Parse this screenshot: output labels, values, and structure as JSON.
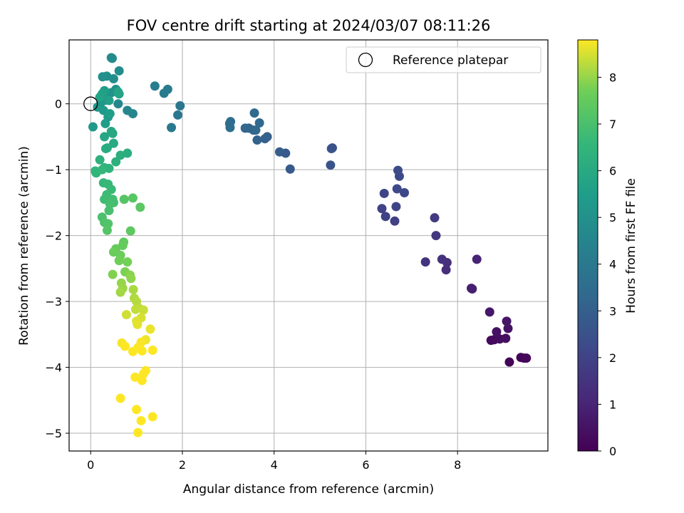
{
  "chart_data": {
    "type": "scatter",
    "title": "FOV centre drift starting at 2024/03/07 08:11:26",
    "xlabel": "Angular distance from reference (arcmin)",
    "ylabel": "Rotation from reference (arcmin)",
    "colorbar_label": "Hours from first FF file",
    "colormap": "viridis",
    "xlim": [
      -0.47,
      9.97
    ],
    "ylim": [
      -5.27,
      0.97
    ],
    "clim": [
      0,
      8.8
    ],
    "x_ticks": [
      0,
      2,
      4,
      6,
      8
    ],
    "y_ticks": [
      0,
      -1,
      -2,
      -3,
      -4,
      -5
    ],
    "colorbar_ticks": [
      0,
      1,
      2,
      3,
      4,
      5,
      6,
      7,
      8
    ],
    "grid": true,
    "legend": {
      "position": "top-right",
      "entries": [
        "Reference platepar"
      ]
    },
    "reference_point": {
      "x": 0,
      "y": 0
    },
    "points": [
      {
        "x": 9.13,
        "y": -3.92,
        "c": 0.05
      },
      {
        "x": 9.38,
        "y": -3.85,
        "c": 0.1
      },
      {
        "x": 9.45,
        "y": -3.86,
        "c": 0.15
      },
      {
        "x": 9.5,
        "y": -3.86,
        "c": 0.2
      },
      {
        "x": 8.73,
        "y": -3.59,
        "c": 0.25
      },
      {
        "x": 8.8,
        "y": -3.58,
        "c": 0.3
      },
      {
        "x": 8.92,
        "y": -3.57,
        "c": 0.35
      },
      {
        "x": 9.05,
        "y": -3.56,
        "c": 0.4
      },
      {
        "x": 8.85,
        "y": -3.46,
        "c": 0.45
      },
      {
        "x": 9.1,
        "y": -3.41,
        "c": 0.5
      },
      {
        "x": 9.07,
        "y": -3.3,
        "c": 0.55
      },
      {
        "x": 8.7,
        "y": -3.16,
        "c": 0.6
      },
      {
        "x": 8.3,
        "y": -2.8,
        "c": 0.8
      },
      {
        "x": 8.32,
        "y": -2.81,
        "c": 0.85
      },
      {
        "x": 8.42,
        "y": -2.36,
        "c": 1.0
      },
      {
        "x": 7.75,
        "y": -2.52,
        "c": 1.3
      },
      {
        "x": 7.77,
        "y": -2.41,
        "c": 1.35
      },
      {
        "x": 7.66,
        "y": -2.36,
        "c": 1.4
      },
      {
        "x": 7.3,
        "y": -2.4,
        "c": 1.5
      },
      {
        "x": 7.53,
        "y": -2.0,
        "c": 1.6
      },
      {
        "x": 7.5,
        "y": -1.73,
        "c": 1.7
      },
      {
        "x": 6.63,
        "y": -1.78,
        "c": 1.9
      },
      {
        "x": 6.43,
        "y": -1.71,
        "c": 1.95
      },
      {
        "x": 6.35,
        "y": -1.59,
        "c": 2.0
      },
      {
        "x": 6.66,
        "y": -1.56,
        "c": 2.05
      },
      {
        "x": 6.4,
        "y": -1.36,
        "c": 2.1
      },
      {
        "x": 6.84,
        "y": -1.35,
        "c": 2.15
      },
      {
        "x": 6.68,
        "y": -1.29,
        "c": 2.2
      },
      {
        "x": 6.73,
        "y": -1.1,
        "c": 2.25
      },
      {
        "x": 6.7,
        "y": -1.01,
        "c": 2.3
      },
      {
        "x": 5.27,
        "y": -0.67,
        "c": 2.5
      },
      {
        "x": 5.25,
        "y": -0.68,
        "c": 2.55
      },
      {
        "x": 5.23,
        "y": -0.93,
        "c": 2.6
      },
      {
        "x": 4.35,
        "y": -0.99,
        "c": 2.8
      },
      {
        "x": 4.25,
        "y": -0.75,
        "c": 2.85
      },
      {
        "x": 4.12,
        "y": -0.73,
        "c": 2.9
      },
      {
        "x": 3.85,
        "y": -0.5,
        "c": 3.0
      },
      {
        "x": 3.8,
        "y": -0.53,
        "c": 3.05
      },
      {
        "x": 3.63,
        "y": -0.55,
        "c": 3.1
      },
      {
        "x": 3.55,
        "y": -0.4,
        "c": 3.15
      },
      {
        "x": 3.45,
        "y": -0.37,
        "c": 3.2
      },
      {
        "x": 3.37,
        "y": -0.37,
        "c": 3.25
      },
      {
        "x": 3.6,
        "y": -0.4,
        "c": 3.3
      },
      {
        "x": 3.68,
        "y": -0.29,
        "c": 3.35
      },
      {
        "x": 3.57,
        "y": -0.14,
        "c": 3.4
      },
      {
        "x": 3.05,
        "y": -0.27,
        "c": 3.5
      },
      {
        "x": 3.03,
        "y": -0.3,
        "c": 3.55
      },
      {
        "x": 3.04,
        "y": -0.36,
        "c": 3.6
      },
      {
        "x": 1.95,
        "y": -0.03,
        "c": 3.9
      },
      {
        "x": 1.9,
        "y": -0.17,
        "c": 3.95
      },
      {
        "x": 1.76,
        "y": -0.36,
        "c": 4.0
      },
      {
        "x": 1.68,
        "y": 0.22,
        "c": 4.1
      },
      {
        "x": 1.6,
        "y": 0.16,
        "c": 4.15
      },
      {
        "x": 1.4,
        "y": 0.27,
        "c": 4.2
      },
      {
        "x": 0.92,
        "y": -0.15,
        "c": 4.5
      },
      {
        "x": 0.8,
        "y": -0.1,
        "c": 4.55
      },
      {
        "x": 0.6,
        "y": 0.0,
        "c": 4.6
      },
      {
        "x": 0.45,
        "y": 0.7,
        "c": 4.7
      },
      {
        "x": 0.47,
        "y": 0.69,
        "c": 4.75
      },
      {
        "x": 0.62,
        "y": 0.5,
        "c": 4.8
      },
      {
        "x": 0.5,
        "y": 0.38,
        "c": 4.85
      },
      {
        "x": 0.35,
        "y": 0.42,
        "c": 4.9
      },
      {
        "x": 0.26,
        "y": 0.41,
        "c": 4.95
      },
      {
        "x": 0.55,
        "y": 0.22,
        "c": 5.0
      },
      {
        "x": 0.45,
        "y": 0.17,
        "c": 5.05
      },
      {
        "x": 0.35,
        "y": 0.1,
        "c": 5.1
      },
      {
        "x": 0.3,
        "y": 0.05,
        "c": 5.15
      },
      {
        "x": 0.2,
        "y": -0.02,
        "c": 5.2
      },
      {
        "x": 0.15,
        "y": -0.05,
        "c": 5.25
      },
      {
        "x": 0.05,
        "y": -0.35,
        "c": 5.3
      },
      {
        "x": 0.28,
        "y": -0.1,
        "c": 5.35
      },
      {
        "x": 0.38,
        "y": -0.2,
        "c": 5.4
      },
      {
        "x": 0.32,
        "y": -0.3,
        "c": 5.45
      },
      {
        "x": 0.42,
        "y": -0.15,
        "c": 5.5
      },
      {
        "x": 0.3,
        "y": 0.2,
        "c": 5.55
      },
      {
        "x": 0.25,
        "y": 0.15,
        "c": 5.6
      },
      {
        "x": 0.4,
        "y": 0.05,
        "c": 5.65
      },
      {
        "x": 0.2,
        "y": 0.1,
        "c": 5.7
      },
      {
        "x": 0.62,
        "y": 0.15,
        "c": 5.75
      },
      {
        "x": 0.6,
        "y": 0.18,
        "c": 5.8
      },
      {
        "x": 0.3,
        "y": -0.5,
        "c": 5.85
      },
      {
        "x": 0.45,
        "y": -0.42,
        "c": 5.9
      },
      {
        "x": 0.48,
        "y": -0.45,
        "c": 5.95
      },
      {
        "x": 0.5,
        "y": -0.6,
        "c": 6.0
      },
      {
        "x": 0.36,
        "y": -0.67,
        "c": 6.05
      },
      {
        "x": 0.33,
        "y": -0.68,
        "c": 6.1
      },
      {
        "x": 0.8,
        "y": -0.75,
        "c": 6.15
      },
      {
        "x": 0.65,
        "y": -0.78,
        "c": 6.2
      },
      {
        "x": 0.55,
        "y": -0.88,
        "c": 6.25
      },
      {
        "x": 0.2,
        "y": -0.85,
        "c": 6.3
      },
      {
        "x": 0.3,
        "y": -0.97,
        "c": 6.35
      },
      {
        "x": 0.4,
        "y": -0.98,
        "c": 6.4
      },
      {
        "x": 0.12,
        "y": -1.05,
        "c": 6.45
      },
      {
        "x": 0.1,
        "y": -1.02,
        "c": 6.5
      },
      {
        "x": 0.25,
        "y": -1.0,
        "c": 6.55
      },
      {
        "x": 0.28,
        "y": -1.2,
        "c": 6.6
      },
      {
        "x": 0.38,
        "y": -1.22,
        "c": 6.65
      },
      {
        "x": 0.45,
        "y": -1.3,
        "c": 6.7
      },
      {
        "x": 0.35,
        "y": -1.38,
        "c": 6.75
      },
      {
        "x": 0.3,
        "y": -1.45,
        "c": 6.8
      },
      {
        "x": 0.48,
        "y": -1.45,
        "c": 6.85
      },
      {
        "x": 0.5,
        "y": -1.5,
        "c": 6.9
      },
      {
        "x": 0.42,
        "y": -1.52,
        "c": 6.95
      },
      {
        "x": 0.4,
        "y": -1.62,
        "c": 7.0
      },
      {
        "x": 0.25,
        "y": -1.72,
        "c": 7.05
      },
      {
        "x": 0.3,
        "y": -1.8,
        "c": 7.1
      },
      {
        "x": 0.38,
        "y": -1.82,
        "c": 7.15
      },
      {
        "x": 0.36,
        "y": -1.92,
        "c": 7.2
      },
      {
        "x": 0.73,
        "y": -1.45,
        "c": 7.25
      },
      {
        "x": 0.92,
        "y": -1.43,
        "c": 7.3
      },
      {
        "x": 1.08,
        "y": -1.57,
        "c": 7.35
      },
      {
        "x": 0.87,
        "y": -1.93,
        "c": 7.4
      },
      {
        "x": 0.72,
        "y": -2.1,
        "c": 7.45
      },
      {
        "x": 0.7,
        "y": -2.15,
        "c": 7.5
      },
      {
        "x": 0.55,
        "y": -2.2,
        "c": 7.55
      },
      {
        "x": 0.5,
        "y": -2.25,
        "c": 7.6
      },
      {
        "x": 0.65,
        "y": -2.3,
        "c": 7.65
      },
      {
        "x": 0.62,
        "y": -2.38,
        "c": 7.7
      },
      {
        "x": 0.8,
        "y": -2.4,
        "c": 7.75
      },
      {
        "x": 0.75,
        "y": -2.55,
        "c": 7.8
      },
      {
        "x": 0.48,
        "y": -2.59,
        "c": 7.85
      },
      {
        "x": 0.86,
        "y": -2.6,
        "c": 7.9
      },
      {
        "x": 0.88,
        "y": -2.65,
        "c": 7.95
      },
      {
        "x": 0.67,
        "y": -2.72,
        "c": 8.0
      },
      {
        "x": 0.7,
        "y": -2.8,
        "c": 8.05
      },
      {
        "x": 0.65,
        "y": -2.86,
        "c": 8.1
      },
      {
        "x": 0.93,
        "y": -2.82,
        "c": 8.15
      },
      {
        "x": 0.95,
        "y": -2.95,
        "c": 8.2
      },
      {
        "x": 1.0,
        "y": -3.0,
        "c": 8.25
      },
      {
        "x": 1.05,
        "y": -3.1,
        "c": 8.3
      },
      {
        "x": 0.98,
        "y": -3.12,
        "c": 8.35
      },
      {
        "x": 1.15,
        "y": -3.13,
        "c": 8.4
      },
      {
        "x": 0.78,
        "y": -3.2,
        "c": 8.45
      },
      {
        "x": 1.1,
        "y": -3.25,
        "c": 8.5
      },
      {
        "x": 1.0,
        "y": -3.3,
        "c": 8.55
      },
      {
        "x": 1.02,
        "y": -3.35,
        "c": 8.6
      },
      {
        "x": 1.3,
        "y": -3.42,
        "c": 8.65
      },
      {
        "x": 1.2,
        "y": -3.58,
        "c": 8.7
      },
      {
        "x": 0.68,
        "y": -3.63,
        "c": 8.75
      },
      {
        "x": 0.75,
        "y": -3.68,
        "c": 8.8
      },
      {
        "x": 1.1,
        "y": -3.62,
        "c": 8.75
      },
      {
        "x": 1.12,
        "y": -3.75,
        "c": 8.8
      },
      {
        "x": 0.92,
        "y": -3.76,
        "c": 8.8
      },
      {
        "x": 1.35,
        "y": -3.74,
        "c": 8.8
      },
      {
        "x": 1.03,
        "y": -3.7,
        "c": 8.8
      },
      {
        "x": 1.2,
        "y": -4.05,
        "c": 8.8
      },
      {
        "x": 1.15,
        "y": -4.1,
        "c": 8.8
      },
      {
        "x": 0.97,
        "y": -4.15,
        "c": 8.8
      },
      {
        "x": 1.12,
        "y": -4.2,
        "c": 8.8
      },
      {
        "x": 0.65,
        "y": -4.47,
        "c": 8.8
      },
      {
        "x": 1.0,
        "y": -4.64,
        "c": 8.8
      },
      {
        "x": 1.35,
        "y": -4.75,
        "c": 8.8
      },
      {
        "x": 1.1,
        "y": -4.81,
        "c": 8.8
      },
      {
        "x": 1.03,
        "y": -4.99,
        "c": 8.8
      }
    ]
  }
}
